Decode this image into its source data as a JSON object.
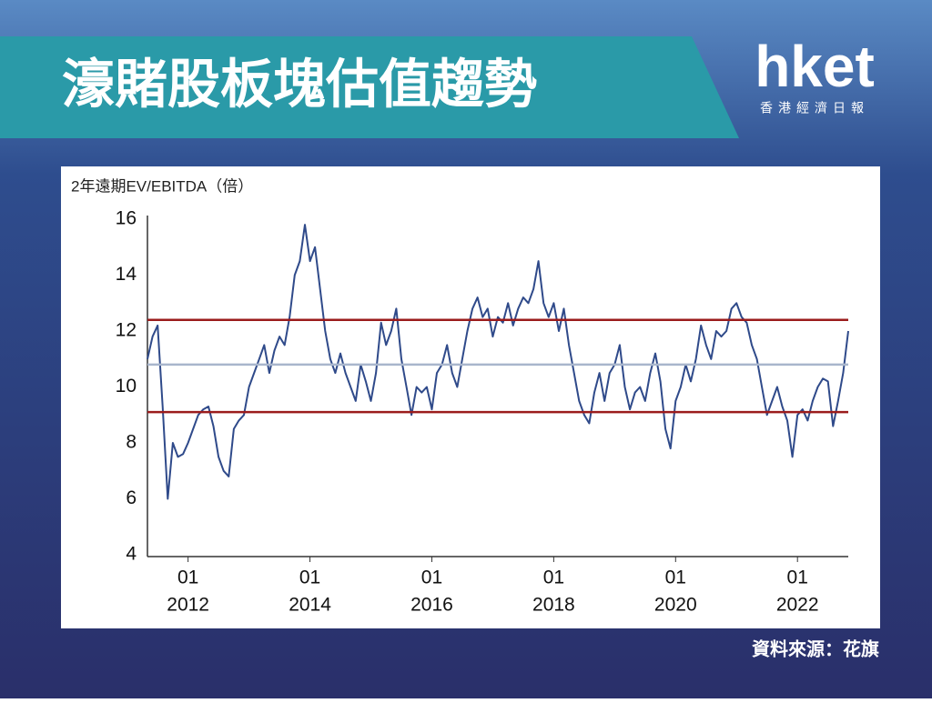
{
  "header": {
    "title": "濠賭股板塊估值趨勢",
    "logo": "hket",
    "logo_subtitle": "香港經濟日報"
  },
  "chart_data": {
    "type": "line",
    "y_axis_label": "2年遠期EV/EBITDA（倍）",
    "x": [
      "2011-05",
      "2011-06",
      "2011-07",
      "2011-08",
      "2011-09",
      "2011-10",
      "2011-11",
      "2011-12",
      "2012-01",
      "2012-02",
      "2012-03",
      "2012-04",
      "2012-05",
      "2012-06",
      "2012-07",
      "2012-08",
      "2012-09",
      "2012-10",
      "2012-11",
      "2012-12",
      "2013-01",
      "2013-02",
      "2013-03",
      "2013-04",
      "2013-05",
      "2013-06",
      "2013-07",
      "2013-08",
      "2013-09",
      "2013-10",
      "2013-11",
      "2013-12",
      "2014-01",
      "2014-02",
      "2014-03",
      "2014-04",
      "2014-05",
      "2014-06",
      "2014-07",
      "2014-08",
      "2014-09",
      "2014-10",
      "2014-11",
      "2014-12",
      "2015-01",
      "2015-02",
      "2015-03",
      "2015-04",
      "2015-05",
      "2015-06",
      "2015-07",
      "2015-08",
      "2015-09",
      "2015-10",
      "2015-11",
      "2015-12",
      "2016-01",
      "2016-02",
      "2016-03",
      "2016-04",
      "2016-05",
      "2016-06",
      "2016-07",
      "2016-08",
      "2016-09",
      "2016-10",
      "2016-11",
      "2016-12",
      "2017-01",
      "2017-02",
      "2017-03",
      "2017-04",
      "2017-05",
      "2017-06",
      "2017-07",
      "2017-08",
      "2017-09",
      "2017-10",
      "2017-11",
      "2017-12",
      "2018-01",
      "2018-02",
      "2018-03",
      "2018-04",
      "2018-05",
      "2018-06",
      "2018-07",
      "2018-08",
      "2018-09",
      "2018-10",
      "2018-11",
      "2018-12",
      "2019-01",
      "2019-02",
      "2019-03",
      "2019-04",
      "2019-05",
      "2019-06",
      "2019-07",
      "2019-08",
      "2019-09",
      "2019-10",
      "2019-11",
      "2019-12",
      "2020-01",
      "2020-02",
      "2020-03",
      "2020-04",
      "2020-05",
      "2020-06",
      "2020-07",
      "2020-08",
      "2020-09",
      "2020-10",
      "2020-11",
      "2020-12",
      "2021-01",
      "2021-02",
      "2021-03",
      "2021-04",
      "2021-05",
      "2021-06",
      "2021-07",
      "2021-08",
      "2021-09",
      "2021-10",
      "2021-11",
      "2021-12",
      "2022-01",
      "2022-02",
      "2022-03",
      "2022-04",
      "2022-05",
      "2022-06",
      "2022-07",
      "2022-08",
      "2022-09",
      "2022-10",
      "2022-11"
    ],
    "series": [
      {
        "color": "#2f4a8a",
        "values": [
          11.0,
          11.8,
          12.2,
          9.3,
          6.0,
          8.0,
          7.5,
          7.6,
          8.0,
          8.5,
          9.0,
          9.2,
          9.3,
          8.6,
          7.5,
          7.0,
          6.8,
          8.5,
          8.8,
          9.0,
          10.0,
          10.5,
          11.0,
          11.5,
          10.5,
          11.3,
          11.8,
          11.5,
          12.5,
          14.0,
          14.5,
          15.8,
          14.5,
          15.0,
          13.5,
          12.0,
          11.0,
          10.5,
          11.2,
          10.5,
          10.0,
          9.5,
          10.8,
          10.2,
          9.5,
          10.5,
          12.3,
          11.5,
          12.0,
          12.8,
          11.0,
          10.0,
          9.0,
          10.0,
          9.8,
          10.0,
          9.2,
          10.5,
          10.8,
          11.5,
          10.5,
          10.0,
          11.0,
          12.0,
          12.8,
          13.2,
          12.5,
          12.8,
          11.8,
          12.5,
          12.3,
          13.0,
          12.2,
          12.8,
          13.2,
          13.0,
          13.5,
          14.5,
          13.0,
          12.5,
          13.0,
          12.0,
          12.8,
          11.5,
          10.5,
          9.5,
          9.0,
          8.7,
          9.8,
          10.5,
          9.5,
          10.5,
          10.8,
          11.5,
          10.0,
          9.2,
          9.8,
          10.0,
          9.5,
          10.5,
          11.2,
          10.2,
          8.5,
          7.8,
          9.5,
          10.0,
          10.8,
          10.2,
          11.0,
          12.2,
          11.5,
          11.0,
          12.0,
          11.8,
          12.0,
          12.8,
          13.0,
          12.5,
          12.3,
          11.5,
          11.0,
          10.0,
          9.0,
          9.5,
          10.0,
          9.3,
          8.8,
          7.5,
          9.0,
          9.2,
          8.8,
          9.5,
          10.0,
          10.3,
          10.2,
          8.6,
          9.5,
          10.5,
          12.0
        ]
      }
    ],
    "reference_lines": [
      {
        "value": 12.4,
        "color": "#9b1c1c"
      },
      {
        "value": 10.8,
        "color": "#a9b6cc"
      },
      {
        "value": 9.1,
        "color": "#9b1c1c"
      }
    ],
    "xlim": [
      "2011-05",
      "2022-11"
    ],
    "xticks": [
      {
        "value": "2012-01",
        "label": [
          "01",
          "2012"
        ]
      },
      {
        "value": "2014-01",
        "label": [
          "01",
          "2014"
        ]
      },
      {
        "value": "2016-01",
        "label": [
          "01",
          "2016"
        ]
      },
      {
        "value": "2018-01",
        "label": [
          "01",
          "2018"
        ]
      },
      {
        "value": "2020-01",
        "label": [
          "01",
          "2020"
        ]
      },
      {
        "value": "2022-01",
        "label": [
          "01",
          "2022"
        ]
      }
    ],
    "ylim": [
      4,
      16
    ],
    "yticks": [
      4,
      6,
      8,
      10,
      12,
      14,
      16
    ],
    "grid": false
  },
  "footer": {
    "source": "資料來源：花旗"
  }
}
